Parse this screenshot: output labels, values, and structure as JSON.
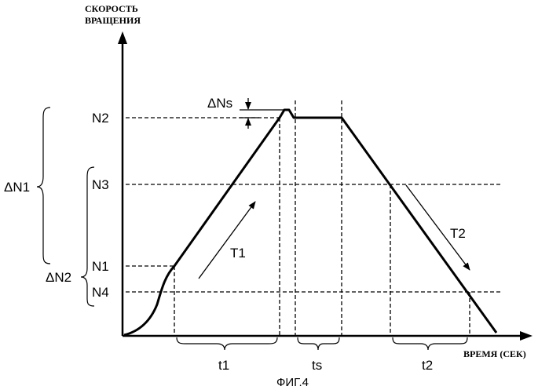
{
  "axes": {
    "y_title_line1": "СКОРОСТЬ",
    "y_title_line2": "ВРАЩЕНИЯ",
    "x_title": "ВРЕМЯ (СЕК)"
  },
  "levels": {
    "n1": "N1",
    "n2": "N2",
    "n3": "N3",
    "n4": "N4"
  },
  "annotations": {
    "delta_n1": "ΔN1",
    "delta_n2": "ΔN2",
    "delta_ns": "ΔNs",
    "t1_rate": "T1",
    "t2_rate": "T2"
  },
  "intervals": {
    "t1": "t1",
    "ts": "ts",
    "t2": "t2"
  },
  "caption": "ФИГ.4"
}
